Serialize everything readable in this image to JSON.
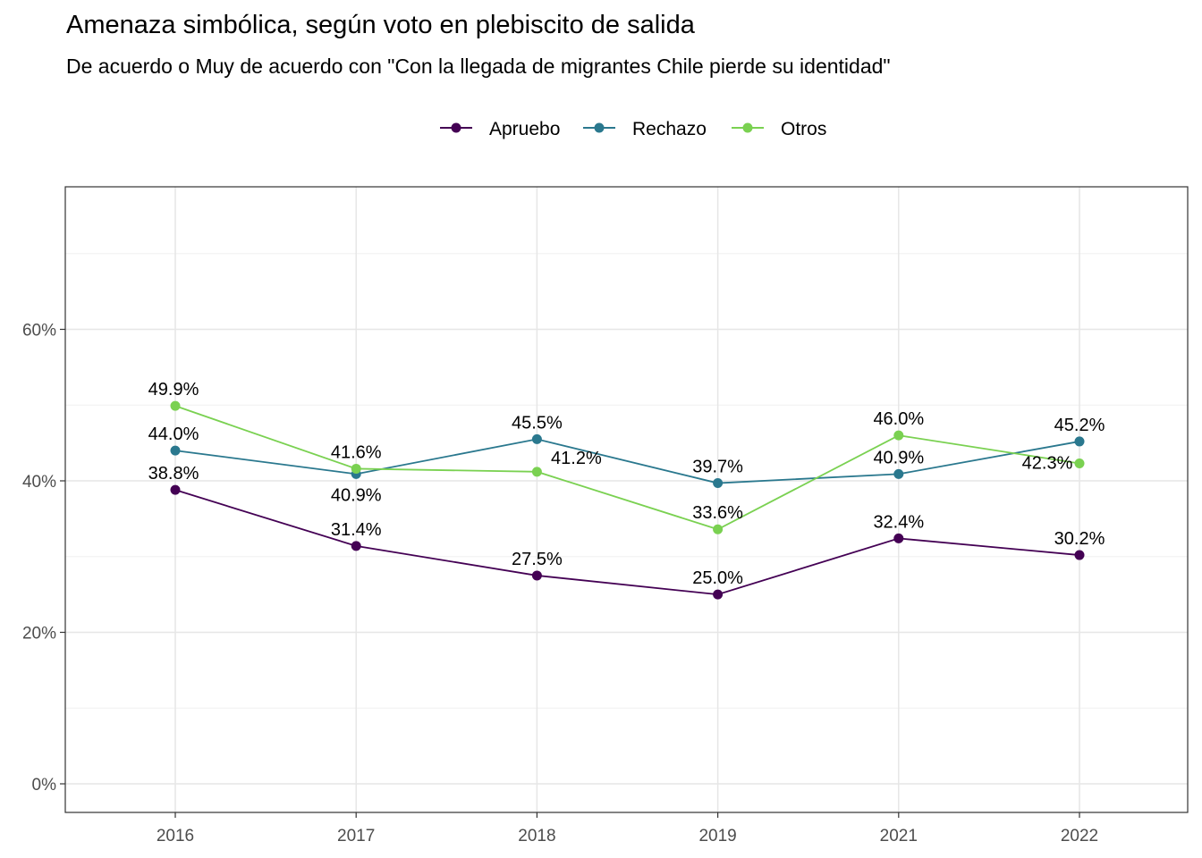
{
  "chart_data": {
    "type": "line",
    "title": "Amenaza simbólica, según voto en plebiscito de salida",
    "subtitle": "De acuerdo o Muy de acuerdo con \"Con la llegada de migrantes Chile pierde su identidad\"",
    "xlabel": "",
    "ylabel": "",
    "x": [
      "2016",
      "2017",
      "2018",
      "2019",
      "2021",
      "2022"
    ],
    "ylim": [
      0,
      0.8
    ],
    "y_ticks": [
      {
        "value": 0,
        "label": "0%"
      },
      {
        "value": 0.2,
        "label": "20%"
      },
      {
        "value": 0.4,
        "label": "40%"
      },
      {
        "value": 0.6,
        "label": "60%"
      }
    ],
    "grid": true,
    "legend_position": "top",
    "series": [
      {
        "name": "Apruebo",
        "color": "#440154",
        "values": [
          0.388,
          0.314,
          0.275,
          0.25,
          0.324,
          0.302
        ],
        "labels": [
          "38.8%",
          "31.4%",
          "27.5%",
          "25.0%",
          "32.4%",
          "30.2%"
        ]
      },
      {
        "name": "Rechazo",
        "color": "#2A788E",
        "values": [
          0.44,
          0.409,
          0.455,
          0.397,
          0.409,
          0.452
        ],
        "labels": [
          "44.0%",
          "40.9%",
          "45.5%",
          "39.7%",
          "40.9%",
          "45.2%"
        ]
      },
      {
        "name": "Otros",
        "color": "#7AD151",
        "values": [
          0.499,
          0.416,
          0.412,
          0.336,
          0.46,
          0.423
        ],
        "labels": [
          "49.9%",
          "41.6%",
          "41.2%",
          "33.6%",
          "46.0%",
          "42.3%"
        ]
      }
    ]
  }
}
